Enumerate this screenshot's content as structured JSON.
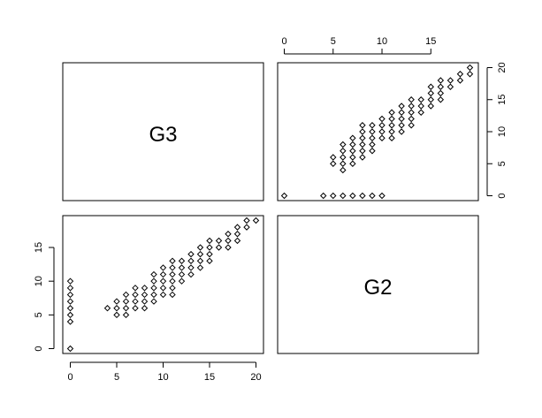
{
  "chart_data": {
    "type": "scatter",
    "variables": [
      "G3",
      "G2"
    ],
    "grid": false,
    "panels": [
      {
        "id": "g3-vs-g2",
        "position": "top-right",
        "xlabel": "G2",
        "ylabel": "G3",
        "xlim": [
          0,
          19
        ],
        "ylim": [
          0,
          20
        ],
        "x_ticks": [
          0,
          5,
          10,
          15
        ],
        "y_ticks": [
          0,
          5,
          10,
          15,
          20
        ],
        "x_axis_side": "top",
        "y_axis_side": "right"
      },
      {
        "id": "g2-vs-g3",
        "position": "bottom-left",
        "xlabel": "G3",
        "ylabel": "G2",
        "xlim": [
          0,
          20
        ],
        "ylim": [
          0,
          19
        ],
        "x_ticks": [
          0,
          5,
          10,
          15,
          20
        ],
        "y_ticks": [
          0,
          5,
          10,
          15
        ],
        "x_axis_side": "bottom",
        "y_axis_side": "left"
      }
    ],
    "points_G2_G3": [
      [
        0,
        0
      ],
      [
        4,
        0
      ],
      [
        5,
        0
      ],
      [
        6,
        0
      ],
      [
        7,
        0
      ],
      [
        8,
        0
      ],
      [
        9,
        0
      ],
      [
        10,
        0
      ],
      [
        5,
        5
      ],
      [
        5,
        6
      ],
      [
        6,
        4
      ],
      [
        6,
        5
      ],
      [
        6,
        6
      ],
      [
        6,
        7
      ],
      [
        6,
        8
      ],
      [
        7,
        5
      ],
      [
        7,
        6
      ],
      [
        7,
        7
      ],
      [
        7,
        8
      ],
      [
        7,
        9
      ],
      [
        8,
        6
      ],
      [
        8,
        7
      ],
      [
        8,
        8
      ],
      [
        8,
        9
      ],
      [
        8,
        10
      ],
      [
        8,
        11
      ],
      [
        9,
        7
      ],
      [
        9,
        8
      ],
      [
        9,
        9
      ],
      [
        9,
        10
      ],
      [
        9,
        11
      ],
      [
        10,
        9
      ],
      [
        10,
        10
      ],
      [
        10,
        11
      ],
      [
        10,
        12
      ],
      [
        11,
        9
      ],
      [
        11,
        10
      ],
      [
        11,
        11
      ],
      [
        11,
        12
      ],
      [
        11,
        13
      ],
      [
        12,
        10
      ],
      [
        12,
        11
      ],
      [
        12,
        12
      ],
      [
        12,
        13
      ],
      [
        12,
        14
      ],
      [
        13,
        11
      ],
      [
        13,
        12
      ],
      [
        13,
        13
      ],
      [
        13,
        14
      ],
      [
        13,
        15
      ],
      [
        14,
        13
      ],
      [
        14,
        14
      ],
      [
        14,
        15
      ],
      [
        15,
        14
      ],
      [
        15,
        15
      ],
      [
        15,
        16
      ],
      [
        15,
        17
      ],
      [
        16,
        15
      ],
      [
        16,
        16
      ],
      [
        16,
        17
      ],
      [
        16,
        18
      ],
      [
        17,
        17
      ],
      [
        17,
        18
      ],
      [
        18,
        18
      ],
      [
        18,
        19
      ],
      [
        19,
        19
      ],
      [
        19,
        20
      ]
    ]
  }
}
